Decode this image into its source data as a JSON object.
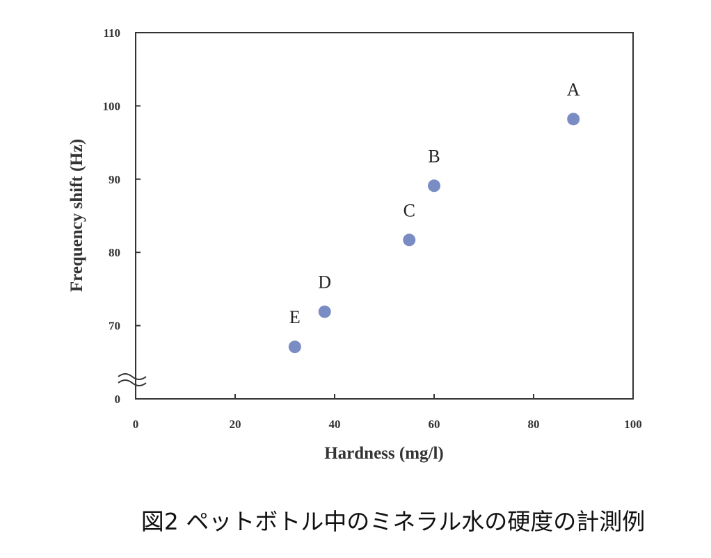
{
  "chart_data": {
    "type": "scatter",
    "caption": "図2 ペットボトル中のミネラル水の硬度の計測例",
    "x_label": "Hardness (mg/l)",
    "y_label": "Frequency shift (Hz)",
    "x": [
      88,
      60,
      55,
      38,
      32
    ],
    "values": [
      98.2,
      89.1,
      81.7,
      71.9,
      67.1
    ],
    "point_labels": [
      "A",
      "B",
      "C",
      "D",
      "E"
    ],
    "color": "#7a8cc4",
    "xlim": [
      0,
      100
    ],
    "xticks": [
      0,
      20,
      40,
      60,
      80,
      100
    ],
    "ylim": [
      0,
      110
    ],
    "yticks": [
      0,
      70,
      80,
      90,
      100,
      110
    ],
    "ybreak": [
      0,
      60
    ]
  }
}
